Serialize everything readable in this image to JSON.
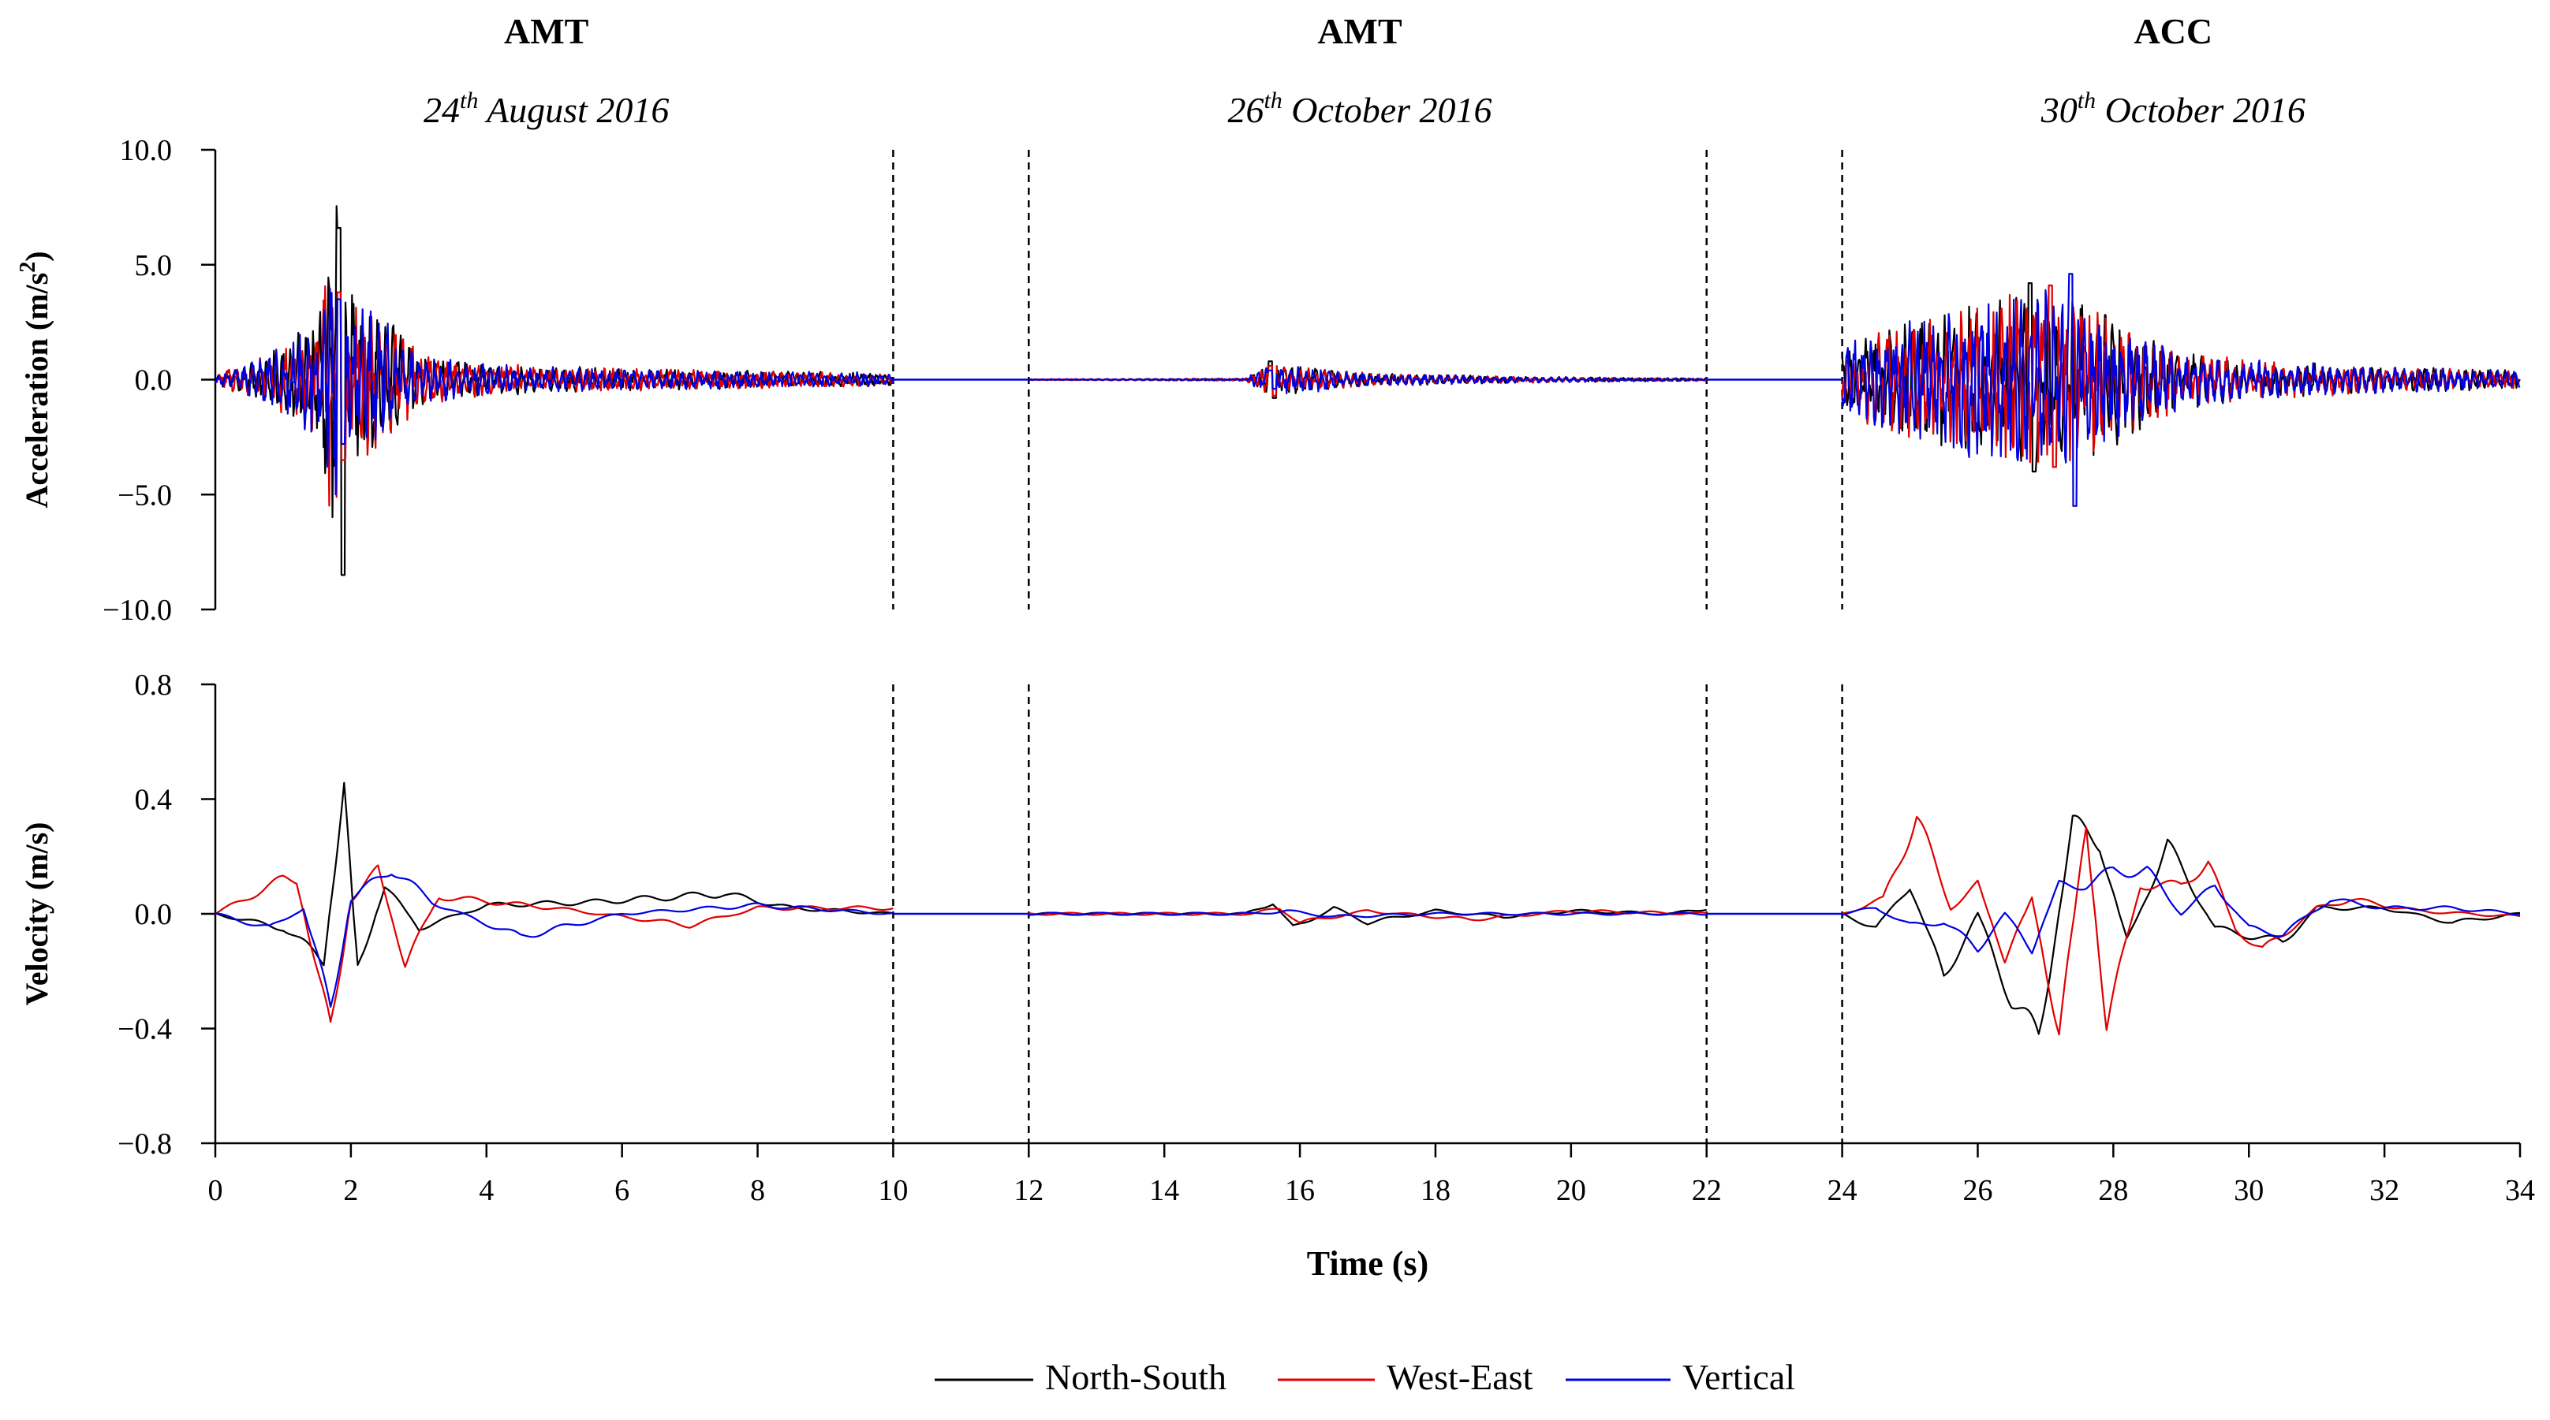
{
  "chart_data": {
    "type": "line",
    "titles": [
      {
        "station": "AMT",
        "date_day": "24",
        "date_sup": "th",
        "date_rest": "August 2016"
      },
      {
        "station": "AMT",
        "date_day": "26",
        "date_sup": "th",
        "date_rest": "October 2016"
      },
      {
        "station": "ACC",
        "date_day": "30",
        "date_sup": "th",
        "date_rest": "October 2016"
      }
    ],
    "xlabel": "Time (s)",
    "xlim": [
      0,
      34
    ],
    "xticks": [
      "0",
      "2",
      "4",
      "6",
      "8",
      "10",
      "12",
      "14",
      "16",
      "18",
      "20",
      "22",
      "24",
      "26",
      "28",
      "30",
      "32",
      "34"
    ],
    "event_separators": [
      10,
      12,
      22,
      24
    ],
    "panels": [
      {
        "id": "acceleration",
        "ylabel_main": "Acceleration (m/s",
        "ylabel_sup": "2",
        "ylabel_end": ")",
        "ylim": [
          -10,
          10
        ],
        "yticks": [
          "10.0",
          "5.0",
          "0.0",
          "−5.0",
          "−10.0"
        ]
      },
      {
        "id": "velocity",
        "ylabel_main": "Velocity (m/s)",
        "ylabel_sup": "",
        "ylabel_end": "",
        "ylim": [
          -0.8,
          0.8
        ],
        "yticks": [
          "0.8",
          "0.4",
          "0.0",
          "−0.4",
          "−0.8"
        ]
      }
    ],
    "series": [
      {
        "name": "North-South",
        "color": "#000000"
      },
      {
        "name": "West-East",
        "color": "#e00000"
      },
      {
        "name": "Vertical",
        "color": "#0000e0"
      }
    ],
    "events": [
      {
        "t_start": 0,
        "t_end": 10,
        "acc_envelope": [
          [
            0,
            0.2
          ],
          [
            1,
            1.5
          ],
          [
            1.5,
            3
          ],
          [
            1.8,
            8
          ],
          [
            2.0,
            4
          ],
          [
            2.5,
            3
          ],
          [
            3,
            1.2
          ],
          [
            4,
            0.7
          ],
          [
            6,
            0.5
          ],
          [
            8,
            0.4
          ],
          [
            10,
            0.3
          ]
        ],
        "acc_peaks": {
          "North-South": [
            6.6,
            -8.5
          ],
          "West-East": [
            3.8,
            -3.5
          ],
          "Vertical": [
            3.5,
            -2.8
          ]
        },
        "vel_points": {
          "North-South": [
            [
              0,
              0
            ],
            [
              1.0,
              -0.05
            ],
            [
              1.6,
              -0.16
            ],
            [
              1.9,
              0.43
            ],
            [
              2.1,
              -0.2
            ],
            [
              2.5,
              0.1
            ],
            [
              3,
              -0.05
            ],
            [
              4,
              0.03
            ],
            [
              5.5,
              0.04
            ],
            [
              7.5,
              0.07
            ],
            [
              8.5,
              0.02
            ],
            [
              10,
              0.0
            ]
          ],
          "West-East": [
            [
              0,
              0
            ],
            [
              1.0,
              0.12
            ],
            [
              1.2,
              0.12
            ],
            [
              1.7,
              -0.42
            ],
            [
              2.0,
              0.05
            ],
            [
              2.4,
              0.15
            ],
            [
              2.8,
              -0.17
            ],
            [
              3.3,
              0.06
            ],
            [
              5,
              0.02
            ],
            [
              7,
              -0.04
            ],
            [
              8,
              0.02
            ],
            [
              10,
              0.02
            ]
          ],
          "Vertical": [
            [
              0,
              0
            ],
            [
              0.8,
              -0.05
            ],
            [
              1.3,
              0.02
            ],
            [
              1.7,
              -0.33
            ],
            [
              2.0,
              0.05
            ],
            [
              2.6,
              0.16
            ],
            [
              3.2,
              0.04
            ],
            [
              4.5,
              -0.08
            ],
            [
              6,
              0.0
            ],
            [
              8,
              0.03
            ],
            [
              10,
              0.0
            ]
          ]
        }
      },
      {
        "t_start": 12,
        "t_end": 22,
        "acc_envelope": [
          [
            12,
            0.02
          ],
          [
            15.2,
            0.05
          ],
          [
            15.5,
            0.7
          ],
          [
            16,
            0.6
          ],
          [
            17,
            0.3
          ],
          [
            19,
            0.15
          ],
          [
            22,
            0.05
          ]
        ],
        "acc_peaks": {
          "North-South": [
            0.8,
            -0.8
          ],
          "West-East": [
            0.6,
            -0.7
          ],
          "Vertical": [
            0.4,
            -0.4
          ]
        },
        "vel_points": {
          "North-South": [
            [
              12,
              0
            ],
            [
              15.2,
              0
            ],
            [
              15.6,
              0.04
            ],
            [
              15.9,
              -0.05
            ],
            [
              16.5,
              0.02
            ],
            [
              17,
              -0.03
            ],
            [
              18,
              0.01
            ],
            [
              19,
              -0.01
            ],
            [
              20,
              0.01
            ],
            [
              21.5,
              0.0
            ],
            [
              22,
              0.02
            ]
          ],
          "West-East": [
            [
              12,
              0
            ],
            [
              15.3,
              0
            ],
            [
              15.7,
              0.02
            ],
            [
              16,
              -0.03
            ],
            [
              17,
              0.01
            ],
            [
              18.5,
              -0.02
            ],
            [
              20,
              0.01
            ],
            [
              22,
              0.0
            ]
          ],
          "Vertical": [
            [
              12,
              0
            ],
            [
              15.3,
              0
            ],
            [
              15.8,
              0.01
            ],
            [
              16.5,
              -0.01
            ],
            [
              18,
              0.0
            ],
            [
              22,
              0.0
            ]
          ]
        }
      },
      {
        "t_start": 24,
        "t_end": 34,
        "acc_envelope": [
          [
            24,
            1.5
          ],
          [
            25,
            2.8
          ],
          [
            26,
            3.5
          ],
          [
            27,
            4.2
          ],
          [
            28,
            3.0
          ],
          [
            28.5,
            2.0
          ],
          [
            29,
            1.3
          ],
          [
            30,
            0.9
          ],
          [
            32,
            0.6
          ],
          [
            34,
            0.4
          ]
        ],
        "acc_peaks": {
          "North-South": [
            4.2,
            -4.0
          ],
          "West-East": [
            4.1,
            -3.8
          ],
          "Vertical": [
            4.6,
            -5.5
          ]
        },
        "vel_points": {
          "North-South": [
            [
              24,
              0
            ],
            [
              24.5,
              -0.05
            ],
            [
              25,
              0.1
            ],
            [
              25.5,
              -0.22
            ],
            [
              26,
              0.0
            ],
            [
              26.5,
              -0.3
            ],
            [
              26.9,
              -0.44
            ],
            [
              27.4,
              0.31
            ],
            [
              27.8,
              0.25
            ],
            [
              28.2,
              -0.1
            ],
            [
              28.8,
              0.24
            ],
            [
              29.5,
              -0.05
            ],
            [
              30.5,
              -0.1
            ],
            [
              31,
              0.02
            ],
            [
              32,
              0.02
            ],
            [
              33,
              -0.03
            ],
            [
              34,
              0.0
            ]
          ],
          "West-East": [
            [
              24,
              0
            ],
            [
              24.6,
              0.05
            ],
            [
              25.1,
              0.34
            ],
            [
              25.6,
              0.02
            ],
            [
              26,
              0.1
            ],
            [
              26.4,
              -0.15
            ],
            [
              26.8,
              0.05
            ],
            [
              27.2,
              -0.4
            ],
            [
              27.6,
              0.3
            ],
            [
              27.9,
              -0.38
            ],
            [
              28.4,
              0.1
            ],
            [
              29.0,
              0.1
            ],
            [
              29.4,
              0.18
            ],
            [
              29.8,
              -0.05
            ],
            [
              30.2,
              -0.13
            ],
            [
              31,
              0.02
            ],
            [
              31.5,
              0.05
            ],
            [
              32.5,
              0.01
            ],
            [
              34,
              -0.01
            ]
          ],
          "Vertical": [
            [
              24,
              0
            ],
            [
              24.5,
              0.02
            ],
            [
              25,
              -0.04
            ],
            [
              25.5,
              -0.03
            ],
            [
              26,
              -0.12
            ],
            [
              26.4,
              0.0
            ],
            [
              26.8,
              -0.12
            ],
            [
              27.2,
              0.1
            ],
            [
              27.6,
              0.1
            ],
            [
              28.0,
              0.15
            ],
            [
              28.5,
              0.15
            ],
            [
              29,
              0.0
            ],
            [
              29.5,
              0.1
            ],
            [
              30,
              -0.05
            ],
            [
              30.5,
              -0.07
            ],
            [
              31.2,
              0.05
            ],
            [
              32,
              0.02
            ],
            [
              33,
              0.02
            ],
            [
              34,
              0.0
            ]
          ]
        }
      }
    ],
    "legend": {
      "placement": "bottom-center"
    }
  }
}
